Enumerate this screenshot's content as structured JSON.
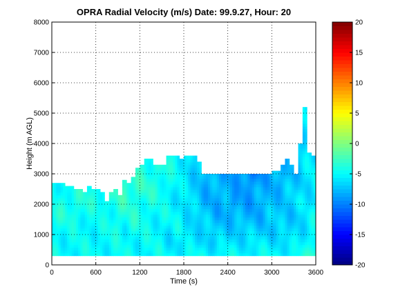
{
  "chart_data": {
    "type": "heatmap",
    "title": "OPRA Radial Velocity (m/s)  Date: 99.9.27, Hour: 20",
    "xlabel": "Time (s)",
    "ylabel": "Height (m AGL)",
    "xlim": [
      0,
      3600
    ],
    "ylim": [
      0,
      8000
    ],
    "xticks": [
      "0",
      "600",
      "1200",
      "1800",
      "2400",
      "3000",
      "3600"
    ],
    "yticks": [
      "0",
      "1000",
      "2000",
      "3000",
      "4000",
      "5000",
      "6000",
      "7000",
      "8000"
    ],
    "grid": "dotted",
    "colorbar": {
      "range": [
        -20,
        20
      ],
      "ticks": [
        "20",
        "15",
        "10",
        "5",
        "0",
        "-5",
        "-10",
        "-15",
        "-20"
      ],
      "colormap": "jet"
    },
    "data_coverage": {
      "time_step_s": 60,
      "min_height_m": 300,
      "top_height_m": [
        2700,
        2700,
        2700,
        2600,
        2600,
        2500,
        2500,
        2400,
        2600,
        2500,
        2500,
        2400,
        2100,
        2400,
        2500,
        2300,
        2800,
        2700,
        2900,
        3200,
        3300,
        3500,
        3500,
        3300,
        3300,
        3300,
        3600,
        3600,
        3600,
        3500,
        3600,
        3600,
        3600,
        3400,
        3000,
        3000,
        3000,
        3000,
        3000,
        3000,
        3000,
        3000,
        3000,
        3000,
        3000,
        3000,
        3000,
        3000,
        3000,
        3000,
        3100,
        3100,
        3300,
        3500,
        3300,
        3000,
        4000,
        5200,
        3700,
        3600
      ]
    },
    "velocity_field_m_s": [
      [
        -2,
        -2,
        -3,
        -3,
        -3,
        -3,
        -3,
        -3,
        -4,
        -4,
        -4,
        -4,
        -5,
        -6,
        -6,
        -7,
        -7,
        -7,
        -6,
        -7,
        -7,
        -8,
        -7,
        -7,
        -7,
        -7,
        -7,
        -6,
        -6,
        -5
      ],
      [
        -3,
        -3,
        -3,
        -2,
        -2,
        -3,
        -3,
        -3,
        -3,
        -4,
        -3,
        -3,
        -4,
        -6,
        -6,
        -7,
        -7,
        -6,
        -6,
        -6,
        -7,
        -7,
        -8,
        -7,
        -6,
        -6,
        -7,
        -6,
        -5,
        -5
      ],
      [
        -4,
        -4,
        -4,
        -3,
        -3,
        -3,
        -3,
        -3,
        -4,
        -3,
        -4,
        -3,
        -3,
        -5,
        -6,
        -6,
        -6,
        -7,
        -7,
        -6,
        -6,
        -7,
        -7,
        -7,
        -7,
        -6,
        -6,
        -6,
        -6,
        -5
      ],
      [
        -5,
        -6,
        -5,
        -4,
        -4,
        -4,
        -3,
        -3,
        -4,
        -4,
        -4,
        -4,
        -3,
        -4,
        -5,
        -6,
        -7,
        -7,
        -8,
        -8,
        -7,
        -8,
        -9,
        -8,
        -7,
        -6,
        -7,
        -7,
        -6,
        -6
      ],
      [
        -5,
        -5,
        -4,
        -4,
        -4,
        -3,
        -4,
        -4,
        -4,
        -4,
        -4,
        -4,
        -4,
        -4,
        -5,
        -6,
        -7,
        -7,
        -8,
        -9,
        -9,
        -9,
        -10,
        -9,
        -8,
        -8,
        -7,
        -7,
        -6,
        -6
      ],
      [
        -4,
        -4,
        -4,
        -3,
        -3,
        -3,
        -3,
        -3,
        -3,
        -3,
        -4,
        -4,
        -4,
        -5,
        -5,
        -6,
        -7,
        -8,
        -8,
        -8,
        -9,
        -9,
        -10,
        -9,
        -8,
        -8,
        -8,
        -7,
        -6,
        -5
      ],
      [
        -4,
        -5,
        -5,
        -4,
        -4,
        -4,
        -4,
        -3,
        -3,
        -3,
        -3,
        -4,
        -4,
        -5,
        -6,
        -6,
        -7,
        -8,
        -8,
        -8,
        -8,
        -9,
        -9,
        -8,
        -8,
        -8,
        -7,
        -7,
        -6,
        -5
      ],
      [
        -5,
        -4,
        -4,
        -4,
        -4,
        -4,
        -4,
        -4,
        -3,
        -4,
        -4,
        -4,
        -5,
        -5,
        -6,
        -6,
        -7,
        -8,
        -8,
        -8,
        -9,
        -8,
        -9,
        -8,
        -8,
        -7,
        -7,
        -6,
        -6,
        -6
      ],
      [
        -4,
        -4,
        -4,
        -4,
        -5,
        -5,
        -5,
        -4,
        -4,
        -4,
        -4,
        -5,
        -5,
        -5,
        -5,
        -6,
        -7,
        -7,
        -8,
        -8,
        -8,
        -8,
        -8,
        -8,
        -7,
        -7,
        -7,
        -7,
        -6,
        -5
      ],
      [
        -4,
        -5,
        -5,
        -5,
        -5,
        -5,
        -5,
        -4,
        -5,
        -4,
        -5,
        -5,
        -5,
        -6,
        -5,
        -6,
        -6,
        -7,
        -7,
        -7,
        -7,
        -7,
        -7,
        -7,
        -7,
        -7,
        -7,
        -6,
        -6,
        -5
      ],
      [
        -5,
        -5,
        -5,
        -5,
        -5,
        -5,
        -5,
        -5,
        -5,
        -5,
        -5,
        -5,
        -5,
        -6,
        -6,
        -6,
        -6,
        -6,
        -7,
        -6,
        -6,
        -6,
        -6,
        -6,
        -6,
        -6,
        -6,
        -6,
        -5,
        -4
      ],
      [
        -5,
        -5,
        -5,
        -5,
        -5,
        -5,
        -5,
        -5,
        -5,
        -5,
        -5,
        -5,
        -5,
        -5,
        -5,
        -5,
        -5,
        -5,
        -5,
        -5,
        -5,
        -5,
        -5,
        -5,
        -5,
        -5,
        -5,
        -5,
        -4,
        -2
      ]
    ]
  }
}
